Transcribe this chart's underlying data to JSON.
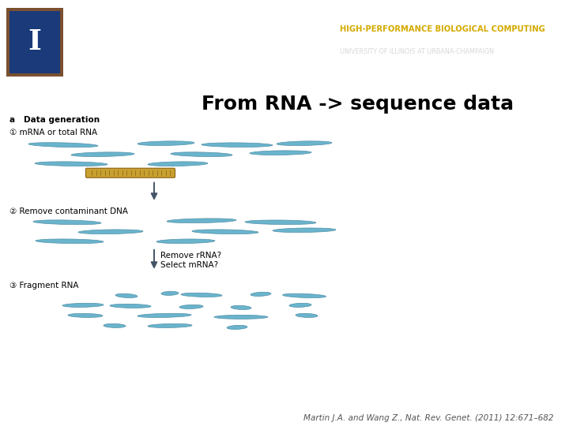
{
  "bg_header_color": "#5e8fa3",
  "bg_main_color": "#ffffff",
  "header_sep_color": "#c8c8c8",
  "title_text": "From RNA -> sequence data",
  "title_fontsize": 18,
  "hpc_text1": "HIGH-PERFORMANCE BIOLOGICAL COMPUTING",
  "hpc_text2": "UNIVERSITY OF ILLINOIS AT URBANA-CHAMPAIGN",
  "hpc_color1": "#d4aa00",
  "hpc_color2": "#d8d8d8",
  "citation": "Martin J.A. and Wang Z., Nat. Rev. Genet. (2011) 12:671–682",
  "citation_fontsize": 7.5,
  "label_a": "a   Data generation",
  "label_1": "① mRNA or total RNA",
  "label_2": "② Remove contaminant DNA",
  "label_3": "③ Fragment RNA",
  "rna_color": "#6ab4cc",
  "rna_edge": "#5090a8",
  "golden_color": "#c8a030",
  "golden_edge": "#8a6010",
  "arrow_color": "#445566",
  "label_fontsize": 7.5,
  "title_color": "#000000"
}
